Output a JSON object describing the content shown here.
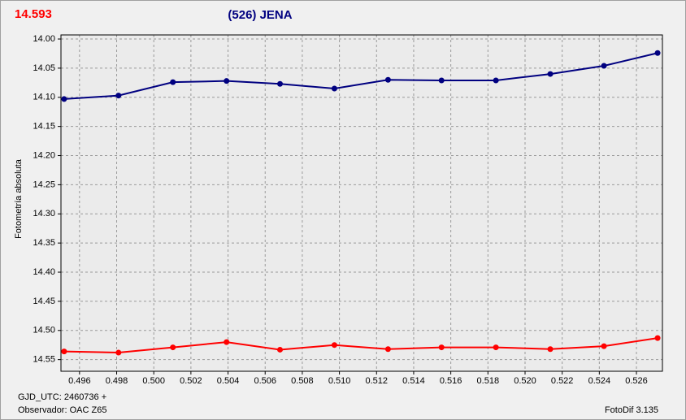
{
  "chart_data": {
    "type": "line",
    "magnitude": "14.593",
    "title": "(526) JENA",
    "y_label": "Fotometría absoluta",
    "footer_left": [
      "GJD_UTC: 2460736 +",
      "Observador: OAC Z65"
    ],
    "footer_right": "FotoDif 3.135",
    "xlim": [
      0.495,
      0.5274
    ],
    "ylim": [
      13.993,
      14.57
    ],
    "y_inverted": true,
    "grid": true,
    "xticks": [
      {
        "value": 0.496,
        "label": "0.496"
      },
      {
        "value": 0.498,
        "label": "0.498"
      },
      {
        "value": 0.5,
        "label": "0.500"
      },
      {
        "value": 0.502,
        "label": "0.502"
      },
      {
        "value": 0.504,
        "label": "0.504"
      },
      {
        "value": 0.506,
        "label": "0.506"
      },
      {
        "value": 0.508,
        "label": "0.508"
      },
      {
        "value": 0.51,
        "label": "0.510"
      },
      {
        "value": 0.512,
        "label": "0.512"
      },
      {
        "value": 0.514,
        "label": "0.514"
      },
      {
        "value": 0.516,
        "label": "0.516"
      },
      {
        "value": 0.518,
        "label": "0.518"
      },
      {
        "value": 0.52,
        "label": "0.520"
      },
      {
        "value": 0.522,
        "label": "0.522"
      },
      {
        "value": 0.524,
        "label": "0.524"
      },
      {
        "value": 0.526,
        "label": "0.526"
      }
    ],
    "yticks": [
      {
        "value": 14.0,
        "label": "14.00"
      },
      {
        "value": 14.05,
        "label": "14.05"
      },
      {
        "value": 14.1,
        "label": "14.10"
      },
      {
        "value": 14.15,
        "label": "14.15"
      },
      {
        "value": 14.2,
        "label": "14.20"
      },
      {
        "value": 14.25,
        "label": "14.25"
      },
      {
        "value": 14.3,
        "label": "14.30"
      },
      {
        "value": 14.35,
        "label": "14.35"
      },
      {
        "value": 14.4,
        "label": "14.40"
      },
      {
        "value": 14.45,
        "label": "14.45"
      },
      {
        "value": 14.5,
        "label": "14.50"
      },
      {
        "value": 14.55,
        "label": "14.55"
      }
    ],
    "x": [
      0.49517,
      0.4981,
      0.50103,
      0.50392,
      0.5068,
      0.50973,
      0.51262,
      0.5155,
      0.51843,
      0.52136,
      0.52425,
      0.52714
    ],
    "series": [
      {
        "color": "#000080",
        "values": [
          14.103,
          14.097,
          14.074,
          14.072,
          14.077,
          14.085,
          14.07,
          14.071,
          14.071,
          14.06,
          14.046,
          14.024
        ]
      },
      {
        "color": "#ff0000",
        "values": [
          14.536,
          14.538,
          14.529,
          14.52,
          14.533,
          14.525,
          14.532,
          14.529,
          14.529,
          14.532,
          14.527,
          14.513
        ]
      }
    ]
  }
}
